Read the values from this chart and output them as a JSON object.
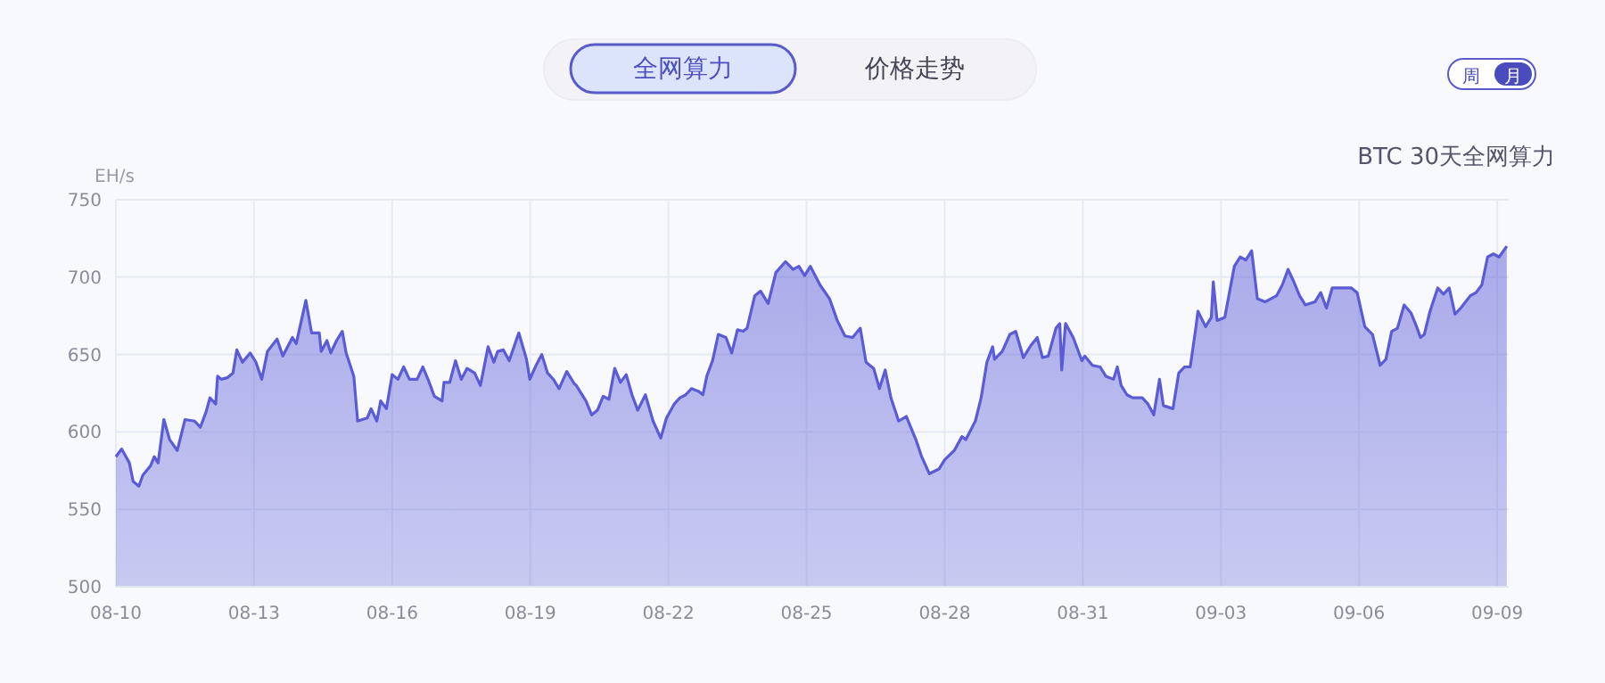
{
  "chart_data": {
    "type": "area",
    "title": "BTC 30天全网算力",
    "ylabel": "EH/s",
    "annotations": [
      "全网算力",
      "价格走势",
      "周",
      "月"
    ],
    "xlim": [
      "--08-10T00:00",
      "--09-09T06:00"
    ],
    "xticks": [
      {
        "value": "--08-10",
        "label": "08-10"
      },
      {
        "value": "--08-13",
        "label": "08-13"
      },
      {
        "value": "--08-16",
        "label": "08-16"
      },
      {
        "value": "--08-19",
        "label": "08-19"
      },
      {
        "value": "--08-22",
        "label": "08-22"
      },
      {
        "value": "--08-25",
        "label": "08-25"
      },
      {
        "value": "--08-28",
        "label": "08-28"
      },
      {
        "value": "--08-31",
        "label": "08-31"
      },
      {
        "value": "--09-03",
        "label": "09-03"
      },
      {
        "value": "--09-06",
        "label": "09-06"
      },
      {
        "value": "--09-09",
        "label": "09-09"
      }
    ],
    "ylim": [
      500,
      750
    ],
    "yticks": [
      500,
      550,
      600,
      650,
      700,
      750
    ],
    "grid": true,
    "series": [
      {
        "color": "#5b5bd6",
        "x": [
          "--08-10T00:00",
          "--08-10T03:00",
          "--08-10T07:00",
          "--08-10T09:00",
          "--08-10T12:00",
          "--08-10T14:00",
          "--08-10T18:00",
          "--08-10T20:00",
          "--08-10T22:00",
          "--08-11T01:00",
          "--08-11T04:00",
          "--08-11T08:00",
          "--08-11T12:00",
          "--08-11T17:00",
          "--08-11T20:00",
          "--08-11T23:00",
          "--08-12T01:00",
          "--08-12T04:00",
          "--08-12T05:00",
          "--08-12T07:00",
          "--08-12T10:00",
          "--08-12T13:00",
          "--08-12T15:00",
          "--08-12T18:00",
          "--08-12T22:00",
          "--08-13T01:00",
          "--08-13T04:00",
          "--08-13T07:00",
          "--08-13T12:00",
          "--08-13T15:00",
          "--08-13T20:00",
          "--08-13T22:00",
          "--08-14T03:00",
          "--08-14T06:00",
          "--08-14T10:00",
          "--08-14T11:00",
          "--08-14T14:00",
          "--08-14T16:00",
          "--08-14T19:00",
          "--08-14T22:00",
          "--08-15T00:00",
          "--08-15T04:00",
          "--08-15T06:00",
          "--08-15T11:00",
          "--08-15T13:00",
          "--08-15T16:00",
          "--08-15T18:00",
          "--08-15T21:00",
          "--08-16T00:00",
          "--08-16T03:00",
          "--08-16T06:00",
          "--08-16T09:00",
          "--08-16T13:00",
          "--08-16T16:00",
          "--08-16T19:00",
          "--08-16T22:00",
          "--08-17T02:00",
          "--08-17T03:00",
          "--08-17T06:00",
          "--08-17T09:00",
          "--08-17T12:00",
          "--08-17T15:00",
          "--08-17T19:00",
          "--08-17T22:00",
          "--08-18T02:00",
          "--08-18T05:00",
          "--08-18T07:00",
          "--08-18T10:00",
          "--08-18T13:00",
          "--08-18T18:00",
          "--08-18T22:00",
          "--08-18T23:45",
          "--08-19T03:00",
          "--08-19T06:00",
          "--08-19T09:00",
          "--08-19T12:00",
          "--08-19T15:00",
          "--08-19T19:00",
          "--08-19T23:00",
          "--08-20T00:00",
          "--08-20T05:00",
          "--08-20T08:00",
          "--08-20T11:00",
          "--08-20T14:00",
          "--08-20T17:00",
          "--08-20T20:00",
          "--08-20T23:00",
          "--08-21T02:00",
          "--08-21T05:00",
          "--08-21T08:00",
          "--08-21T12:00",
          "--08-21T16:00",
          "--08-21T20:00",
          "--08-21T23:00",
          "--08-22T03:00",
          "--08-22T06:00",
          "--08-22T09:00",
          "--08-22T12:00",
          "--08-22T16:00",
          "--08-22T18:00",
          "--08-22T20:00",
          "--08-22T23:00",
          "--08-23T02:00",
          "--08-23T06:00",
          "--08-23T09:00",
          "--08-23T12:00",
          "--08-23T15:00",
          "--08-23T17:00",
          "--08-23T21:00",
          "--08-24T00:00",
          "--08-24T04:00",
          "--08-24T08:00",
          "--08-24T13:00",
          "--08-24T17:00",
          "--08-24T20:00",
          "--08-24T23:00",
          "--08-25T02:00",
          "--08-25T07:00",
          "--08-25T12:00",
          "--08-25T16:00",
          "--08-25T20:00",
          "--08-26T00:00",
          "--08-26T04:00",
          "--08-26T07:00",
          "--08-26T11:00",
          "--08-26T14:00",
          "--08-26T17:00",
          "--08-26T20:00",
          "--08-27T00:00",
          "--08-27T04:00",
          "--08-27T09:00",
          "--08-27T12:00",
          "--08-27T16:00",
          "--08-27T21:00",
          "--08-28T00:00",
          "--08-28T05:00",
          "--08-28T09:00",
          "--08-28T11:00",
          "--08-28T16:00",
          "--08-28T19:00",
          "--08-28T22:00",
          "--08-29T01:00",
          "--08-29T02:00",
          "--08-29T06:00",
          "--08-29T10:00",
          "--08-29T13:00",
          "--08-29T17:00",
          "--08-29T21:00",
          "--08-30T00:15",
          "--08-30T03:00",
          "--08-30T06:00",
          "--08-30T10:00",
          "--08-30T12:00",
          "--08-30T13:00",
          "--08-30T15:00",
          "--08-30T19:00",
          "--08-30T23:30",
          "--08-31T01:00",
          "--08-31T05:00",
          "--08-31T09:00",
          "--08-31T12:00",
          "--08-31T16:00",
          "--08-31T18:00",
          "--08-31T20:00",
          "--08-31T23:00",
          "--09-01T02:00",
          "--09-01T07:00",
          "--09-01T10:00",
          "--09-01T13:00",
          "--09-01T16:00",
          "--09-01T18:00",
          "--09-01T23:00",
          "--09-02T02:00",
          "--09-02T05:00",
          "--09-02T08:00",
          "--09-02T11:00",
          "--09-02T12:00",
          "--09-02T16:00",
          "--09-02T19:00",
          "--09-02T20:00",
          "--09-02T22:00",
          "--09-03T02:00",
          "--09-03T07:00",
          "--09-03T10:00",
          "--09-03T13:00",
          "--09-03T16:00",
          "--09-03T19:00",
          "--09-03T23:00",
          "--09-04T02:00",
          "--09-04T05:00",
          "--09-04T08:00",
          "--09-04T11:00",
          "--09-04T14:00",
          "--09-04T17:00",
          "--09-04T20:00",
          "--09-05T01:00",
          "--09-05T04:00",
          "--09-05T07:00",
          "--09-05T10:00",
          "--09-05T15:00",
          "--09-05T20:00",
          "--09-05T23:00",
          "--09-06T03:00",
          "--09-06T07:00",
          "--09-06T11:00",
          "--09-06T14:00",
          "--09-06T17:00",
          "--09-06T20:00",
          "--09-06T23:30",
          "--09-07T03:00",
          "--09-07T06:00",
          "--09-07T08:00",
          "--09-07T10:00",
          "--09-07T13:00",
          "--09-07T17:00",
          "--09-07T20:00",
          "--09-07T23:00",
          "--09-08T02:00",
          "--09-08T05:00",
          "--09-08T10:00",
          "--09-08T13:00",
          "--09-08T16:00",
          "--09-08T19:00",
          "--09-08T22:00",
          "--09-09T01:00",
          "--09-09T05:00"
        ],
        "values": [
          584,
          589,
          580,
          568,
          565,
          572,
          578,
          584,
          580,
          608,
          595,
          588,
          608,
          607,
          603,
          613,
          622,
          618,
          636,
          634,
          635,
          638,
          653,
          645,
          651,
          645,
          634,
          652,
          660,
          649,
          661,
          657,
          685,
          664,
          664,
          652,
          659,
          651,
          659,
          665,
          651,
          636,
          607,
          609,
          615,
          607,
          620,
          615,
          637,
          634,
          642,
          634,
          634,
          642,
          633,
          623,
          620,
          632,
          632,
          646,
          634,
          641,
          638,
          630,
          655,
          645,
          652,
          653,
          646,
          664,
          647,
          634,
          643,
          650,
          638,
          634,
          628,
          639,
          631,
          630,
          620,
          611,
          614,
          623,
          621,
          641,
          632,
          637,
          624,
          614,
          624,
          607,
          596,
          609,
          618,
          622,
          624,
          628,
          626,
          624,
          636,
          646,
          663,
          661,
          651,
          666,
          665,
          667,
          688,
          691,
          683,
          703,
          710,
          705,
          707,
          701,
          707,
          695,
          686,
          672,
          662,
          661,
          667,
          645,
          641,
          628,
          640,
          622,
          607,
          610,
          595,
          584,
          573,
          576,
          582,
          588,
          597,
          595,
          607,
          622,
          645,
          655,
          647,
          652,
          663,
          665,
          648,
          656,
          661,
          648,
          649,
          667,
          670,
          640,
          670,
          661,
          646,
          649,
          643,
          642,
          636,
          634,
          642,
          630,
          624,
          622,
          622,
          618,
          611,
          634,
          617,
          615,
          638,
          642,
          642,
          668,
          678,
          668,
          674,
          697,
          672,
          674,
          707,
          713,
          711,
          717,
          686,
          684,
          686,
          688,
          695,
          705,
          697,
          688,
          682,
          684,
          690,
          680,
          693,
          693,
          693,
          690,
          668,
          663,
          643,
          647,
          665,
          667,
          682,
          677,
          668,
          661,
          663,
          678,
          693,
          689,
          693,
          676,
          680,
          688,
          690,
          695,
          713,
          715,
          713,
          720
        ]
      }
    ]
  }
}
